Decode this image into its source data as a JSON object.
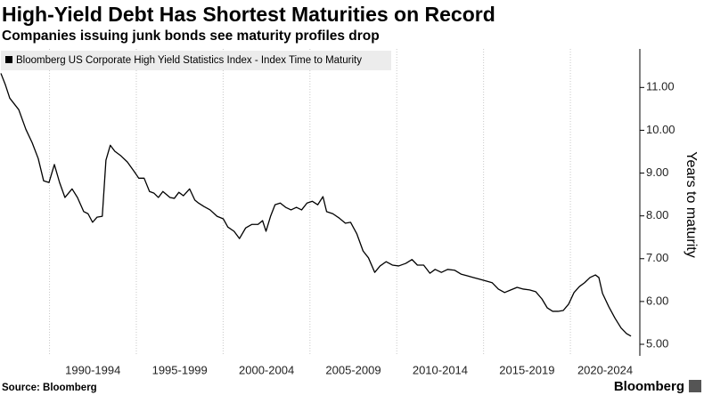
{
  "chart_data": {
    "type": "line",
    "title": "High-Yield Debt Has Shortest Maturities on Record",
    "subtitle": "Companies issuing junk bonds see maturity profiles drop",
    "y_label": "Years to maturity",
    "source": "Source: Bloomberg",
    "brand": "Bloomberg",
    "legend": "top-left",
    "grid": "x",
    "xlim": [
      1987.2,
      2024.0
    ],
    "xticks": [
      {
        "value": 1990,
        "label": "1990-1994"
      },
      {
        "value": 1995,
        "label": "1995-1999"
      },
      {
        "value": 2000,
        "label": "2000-2004"
      },
      {
        "value": 2005,
        "label": "2005-2009"
      },
      {
        "value": 2010,
        "label": "2010-2014"
      },
      {
        "value": 2015,
        "label": "2015-2019"
      },
      {
        "value": 2020,
        "label": "2020-2024"
      }
    ],
    "ylim": [
      4.73,
      11.9
    ],
    "yticks": [
      {
        "value": 5,
        "label": "5.00"
      },
      {
        "value": 6,
        "label": "6.00"
      },
      {
        "value": 7,
        "label": "7.00"
      },
      {
        "value": 8,
        "label": "8.00"
      },
      {
        "value": 9,
        "label": "9.00"
      },
      {
        "value": 10,
        "label": "10.00"
      },
      {
        "value": 11,
        "label": "11.00"
      }
    ],
    "x": [
      1987.2,
      1987.46,
      1987.71,
      1988.23,
      1988.64,
      1989.0,
      1989.35,
      1989.66,
      1989.97,
      1990.28,
      1990.58,
      1990.89,
      1991.3,
      1991.61,
      1991.97,
      1992.22,
      1992.48,
      1992.74,
      1993.04,
      1993.25,
      1993.5,
      1993.76,
      1994.12,
      1994.48,
      1994.89,
      1995.14,
      1995.45,
      1995.76,
      1996.02,
      1996.27,
      1996.53,
      1996.94,
      1997.19,
      1997.45,
      1997.71,
      1998.07,
      1998.37,
      1998.58,
      1998.89,
      1999.25,
      1999.65,
      2000.01,
      2000.27,
      2000.63,
      2000.94,
      2001.3,
      2001.65,
      2002.01,
      2002.27,
      2002.47,
      2002.73,
      2002.99,
      2003.29,
      2003.6,
      2003.91,
      2004.22,
      2004.52,
      2004.83,
      2005.14,
      2005.45,
      2005.75,
      2005.96,
      2006.32,
      2006.68,
      2007.04,
      2007.34,
      2007.7,
      2008.06,
      2008.37,
      2008.73,
      2009.04,
      2009.39,
      2009.75,
      2010.11,
      2010.52,
      2010.88,
      2011.19,
      2011.55,
      2011.91,
      2012.21,
      2012.57,
      2012.93,
      2013.34,
      2013.7,
      2014.06,
      2014.42,
      2014.78,
      2015.13,
      2015.49,
      2015.85,
      2016.21,
      2016.57,
      2016.93,
      2017.29,
      2017.65,
      2018.0,
      2018.36,
      2018.67,
      2018.98,
      2019.29,
      2019.59,
      2019.9,
      2020.21,
      2020.52,
      2020.82,
      2021.13,
      2021.44,
      2021.64,
      2021.85,
      2022.21,
      2022.57,
      2022.92,
      2023.23,
      2023.49
    ],
    "series": [
      {
        "name": "Bloomberg US Corporate High Yield Statistics Index - Index Time to Maturity",
        "color": "#000000",
        "values": [
          11.33,
          11.06,
          10.75,
          10.48,
          10.02,
          9.71,
          9.34,
          8.82,
          8.78,
          9.2,
          8.78,
          8.43,
          8.63,
          8.43,
          8.1,
          8.05,
          7.85,
          7.97,
          7.99,
          9.3,
          9.65,
          9.51,
          9.4,
          9.26,
          9.03,
          8.88,
          8.88,
          8.57,
          8.53,
          8.43,
          8.57,
          8.43,
          8.41,
          8.55,
          8.47,
          8.63,
          8.37,
          8.3,
          8.22,
          8.14,
          7.99,
          7.93,
          7.74,
          7.64,
          7.47,
          7.72,
          7.8,
          7.8,
          7.89,
          7.64,
          7.99,
          8.26,
          8.3,
          8.2,
          8.14,
          8.2,
          8.14,
          8.3,
          8.34,
          8.26,
          8.45,
          8.1,
          8.05,
          7.95,
          7.83,
          7.85,
          7.58,
          7.18,
          7.02,
          6.68,
          6.83,
          6.93,
          6.85,
          6.83,
          6.89,
          6.98,
          6.85,
          6.85,
          6.66,
          6.75,
          6.68,
          6.75,
          6.73,
          6.64,
          6.6,
          6.56,
          6.52,
          6.48,
          6.44,
          6.29,
          6.21,
          6.27,
          6.33,
          6.29,
          6.27,
          6.23,
          6.06,
          5.85,
          5.77,
          5.77,
          5.79,
          5.94,
          6.21,
          6.35,
          6.44,
          6.56,
          6.62,
          6.56,
          6.19,
          5.88,
          5.61,
          5.38,
          5.25,
          5.19
        ]
      }
    ]
  }
}
